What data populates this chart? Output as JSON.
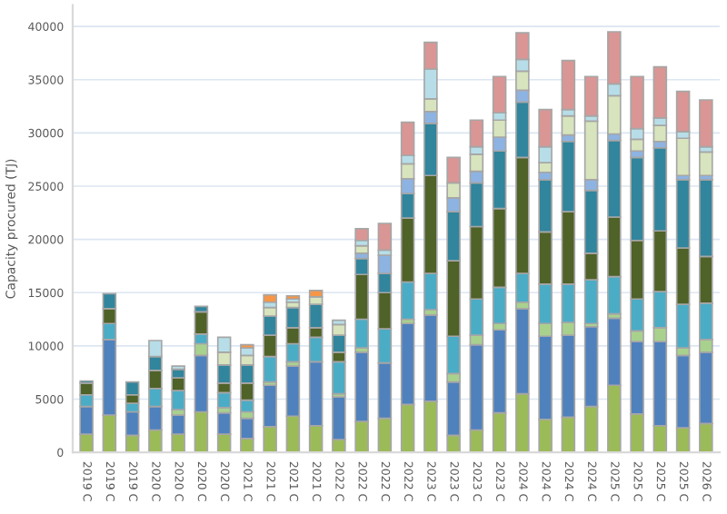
{
  "chart_data": {
    "type": "bar",
    "stacked": true,
    "ylabel": "Capacity procured (TJ)",
    "categories": [
      "2019 C",
      "2019 C",
      "2019 C",
      "2020 C",
      "2020 C",
      "2020 C",
      "2020 C",
      "2021 C",
      "2021 C",
      "2021 C",
      "2021 C",
      "2022 C",
      "2022 C",
      "2022 C",
      "2022 C",
      "2023 C",
      "2023 C",
      "2023 C",
      "2023 C",
      "2024 C",
      "2024 C",
      "2024 C",
      "2024 C",
      "2025 C",
      "2025 C",
      "2025 C",
      "2025 C",
      "2026 C"
    ],
    "ylim": [
      0,
      42000
    ],
    "yticks": [
      0,
      5000,
      10000,
      15000,
      20000,
      25000,
      30000,
      35000,
      40000
    ],
    "grid": "y",
    "legend": false,
    "series": [
      {
        "color": "#9bbb59",
        "values": [
          1700,
          3500,
          1600,
          2100,
          1700,
          3800,
          1700,
          1300,
          2400,
          3400,
          2500,
          1200,
          2900,
          3200,
          4500,
          4800,
          1600,
          2100,
          3700,
          5500,
          3100,
          3300,
          4300,
          6300,
          3600,
          2500,
          2300,
          2700
        ]
      },
      {
        "color": "#4f81bd",
        "values": [
          2600,
          7100,
          2200,
          2200,
          1800,
          5300,
          2000,
          1900,
          3900,
          4700,
          6000,
          4000,
          6500,
          5200,
          7600,
          8100,
          5000,
          8000,
          7800,
          8000,
          7800,
          7700,
          7500,
          6300,
          6800,
          7900,
          6800,
          6700
        ]
      },
      {
        "color": "#a9d18e",
        "values": [
          null,
          null,
          null,
          null,
          500,
          1100,
          500,
          600,
          300,
          400,
          null,
          300,
          400,
          null,
          400,
          500,
          800,
          900,
          600,
          600,
          1200,
          1200,
          300,
          400,
          1000,
          1300,
          700,
          1200
        ]
      },
      {
        "color": "#4bacc6",
        "values": [
          1100,
          1500,
          800,
          1700,
          1800,
          900,
          1400,
          1100,
          2400,
          1700,
          2300,
          3000,
          2700,
          3200,
          3500,
          3400,
          3500,
          3400,
          3400,
          2700,
          3700,
          3600,
          4100,
          3500,
          3000,
          3400,
          4100,
          3400
        ]
      },
      {
        "color": "#4f6228",
        "values": [
          1100,
          1400,
          800,
          1700,
          1200,
          2100,
          900,
          1600,
          2000,
          1500,
          900,
          900,
          4200,
          3400,
          6000,
          9200,
          7100,
          6800,
          7400,
          10900,
          4900,
          6800,
          2500,
          5600,
          5500,
          5700,
          5300,
          4400
        ]
      },
      {
        "color": "#31859c",
        "values": [
          200,
          1400,
          1200,
          1300,
          800,
          500,
          1700,
          1700,
          1800,
          1900,
          2200,
          1600,
          1500,
          1800,
          2300,
          4900,
          4600,
          4100,
          5400,
          5200,
          4900,
          6600,
          5900,
          7200,
          7800,
          7800,
          6400,
          7200
        ]
      },
      {
        "color": "#8db3e2",
        "values": [
          null,
          null,
          null,
          null,
          null,
          null,
          null,
          null,
          null,
          null,
          null,
          null,
          500,
          1700,
          1400,
          1100,
          1300,
          1100,
          1300,
          1100,
          700,
          600,
          1000,
          600,
          600,
          600,
          400,
          400
        ]
      },
      {
        "color": "#d7e4bd",
        "values": [
          null,
          null,
          null,
          null,
          null,
          null,
          1200,
          900,
          800,
          500,
          700,
          1000,
          700,
          null,
          1400,
          1200,
          1400,
          1600,
          1600,
          1800,
          900,
          1800,
          5500,
          3600,
          1100,
          1500,
          3500,
          2200
        ]
      },
      {
        "color": "#b7dee8",
        "values": [
          null,
          null,
          null,
          1500,
          300,
          null,
          1400,
          700,
          500,
          300,
          null,
          400,
          500,
          500,
          800,
          2800,
          null,
          700,
          700,
          1100,
          1500,
          600,
          500,
          1100,
          1000,
          700,
          600,
          500
        ]
      },
      {
        "color": "#d99694",
        "values": [
          null,
          null,
          null,
          null,
          null,
          null,
          null,
          null,
          null,
          null,
          null,
          null,
          1100,
          2500,
          3100,
          2500,
          2400,
          2500,
          3400,
          2500,
          3500,
          4600,
          3700,
          4900,
          4900,
          4800,
          3800,
          4400
        ]
      },
      {
        "color": "#f79646",
        "values": [
          null,
          null,
          null,
          null,
          null,
          null,
          null,
          300,
          700,
          300,
          600,
          null,
          null,
          null,
          null,
          null,
          null,
          null,
          null,
          null,
          null,
          null,
          null,
          null,
          null,
          null,
          null,
          null
        ]
      }
    ]
  }
}
